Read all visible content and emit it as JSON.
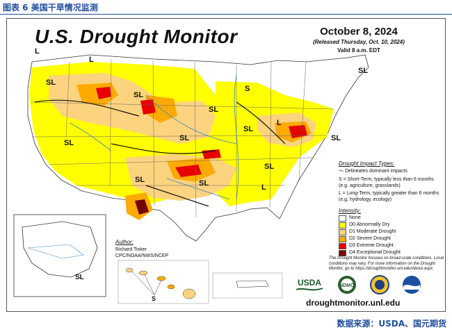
{
  "figure": {
    "caption": "图表 6 美国干旱情况监测",
    "source": "数据来源：USDA、国元期货"
  },
  "map": {
    "title": "U.S. Drought Monitor",
    "date": "October 8, 2024",
    "released": "(Released Thursday, Oct. 10, 2024)",
    "valid": "Valid 8 a.m. EDT",
    "impact_types": {
      "heading": "Drought Impact Types:",
      "delineates": "Delineates dominant impacts",
      "short_term": "S = Short-Term, typically less than 6 months (e.g. agriculture, grasslands)",
      "long_term": "L = Long-Term, typically greater than 6 months (e.g. hydrology, ecology)"
    },
    "intensity": {
      "heading": "Intensity:",
      "levels": [
        {
          "label": "None",
          "color": "#ffffff"
        },
        {
          "label": "D0 Abnormally Dry",
          "color": "#ffff00"
        },
        {
          "label": "D1 Moderate Drought",
          "color": "#fcd37f"
        },
        {
          "label": "D2 Severe Drought",
          "color": "#ffaa00"
        },
        {
          "label": "D3 Extreme Drought",
          "color": "#e60000"
        },
        {
          "label": "D4 Exceptional Drought",
          "color": "#730000"
        }
      ]
    },
    "author": {
      "heading": "Author:",
      "name": "Richard Tinker",
      "org": "CPC/NOAA/NWS/NCEP"
    },
    "footnote": "The Drought Monitor focuses on broad-scale conditions. Local conditions may vary. For more information on the Drought Monitor, go to https://droughtmonitor.unl.edu/About.aspx",
    "website": "droughtmonitor.unl.edu",
    "logos": {
      "usda": "USDA",
      "ndmc": "NDMC"
    },
    "region_labels": {
      "sl": "SL",
      "s": "S",
      "l": "L"
    }
  }
}
